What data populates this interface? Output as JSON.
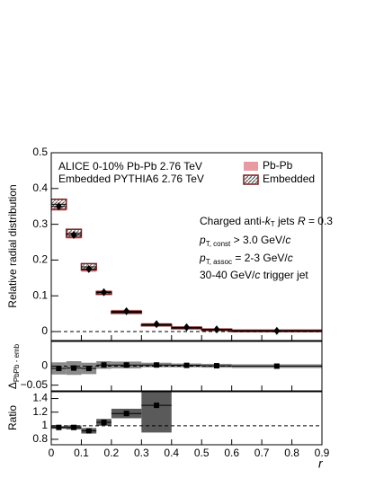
{
  "chart_data": [
    {
      "type": "histogram",
      "ylabel": "Relative radial distribution",
      "bins": [
        0,
        0.05,
        0.1,
        0.15,
        0.2,
        0.3,
        0.4,
        0.5,
        0.6,
        0.9
      ],
      "x": [
        0.025,
        0.075,
        0.125,
        0.175,
        0.25,
        0.35,
        0.45,
        0.55,
        0.75
      ],
      "series": [
        {
          "name": "Pb-Pb",
          "color": "#e89aa2",
          "values": [
            0.35,
            0.27,
            0.175,
            0.11,
            0.057,
            0.021,
            0.012,
            0.006,
            0.002
          ],
          "errors": [
            0.012,
            0.01,
            0.008,
            0.005,
            0.004,
            0.003,
            0.003,
            0.003,
            0.004
          ]
        },
        {
          "name": "Embedded",
          "color": "#7a1e1e",
          "values": [
            0.356,
            0.275,
            0.181,
            0.108,
            0.054,
            0.018,
            0.01,
            0.005,
            0.002
          ],
          "errors": [
            0.014,
            0.011,
            0.009,
            0.004,
            0.003,
            0.002,
            0.002,
            0.002,
            0.002
          ]
        }
      ],
      "annotations": [
        "ALICE 0-10% Pb-Pb 2.76 TeV",
        "Embedded PYTHIA6 2.76 TeV"
      ],
      "jet_text": [
        "Charged anti-",
        "k",
        "T",
        " jets ",
        "R",
        " = 0.3"
      ],
      "const_text": [
        "p",
        "T, const",
        " > 3.0 GeV/",
        "c"
      ],
      "assoc_text": [
        "p",
        "T, assoc",
        " = 2-3 GeV/",
        "c"
      ],
      "trigger_text": [
        "30-40 GeV/",
        "c",
        " trigger jet"
      ],
      "reference": 0,
      "xlim": [
        0,
        0.9
      ],
      "xticks": [
        0,
        0.1,
        0.2,
        0.3,
        0.4,
        0.5,
        0.6,
        0.7,
        0.8,
        0.9
      ],
      "ylim": [
        -0.025,
        0.5
      ],
      "yticks": [
        0,
        0.1,
        0.2,
        0.3,
        0.4,
        0.5
      ]
    },
    {
      "type": "histogram",
      "ylabel": [
        "Δ",
        "PbPb - emb"
      ],
      "bins": [
        0,
        0.05,
        0.1,
        0.15,
        0.2,
        0.3,
        0.4,
        0.5,
        0.6,
        0.9
      ],
      "x": [
        0.025,
        0.075,
        0.125,
        0.175,
        0.25,
        0.35,
        0.45,
        0.55,
        0.75
      ],
      "series": [
        {
          "color": "#8a8a8a",
          "values": [
            -0.006,
            -0.005,
            -0.006,
            0.003,
            0.003,
            0.003,
            0.002,
            0.001,
            0.0
          ],
          "errors": [
            0.016,
            0.018,
            0.015,
            0.01,
            0.009,
            0.006,
            0.005,
            0.005,
            0.005
          ]
        }
      ],
      "reference": 0,
      "xlim": [
        0,
        0.9
      ],
      "xticks": [
        0,
        0.1,
        0.2,
        0.3,
        0.4,
        0.5,
        0.6,
        0.7,
        0.8,
        0.9
      ],
      "ylim": [
        -0.065,
        0.065
      ],
      "yticks": [
        {
          "value": -0.05,
          "label": "−0.05"
        },
        0
      ]
    },
    {
      "type": "histogram",
      "ylabel": "Ratio",
      "xlabel": "r",
      "bins": [
        0,
        0.05,
        0.1,
        0.15,
        0.2,
        0.3,
        0.4,
        0.5,
        0.6,
        0.9
      ],
      "x": [
        0.025,
        0.075,
        0.125,
        0.175,
        0.25,
        0.35,
        0.45,
        0.55,
        0.75
      ],
      "series": [
        {
          "color": "#5a5a5a",
          "values": [
            0.975,
            0.975,
            0.925,
            1.05,
            1.18,
            1.3,
            null,
            null,
            null
          ],
          "errors": [
            0.02,
            0.03,
            0.04,
            0.05,
            0.07,
            0.4,
            null,
            null,
            null
          ]
        }
      ],
      "reference": 1,
      "xlim": [
        0,
        0.9
      ],
      "xticks": [
        0,
        0.1,
        0.2,
        0.3,
        0.4,
        0.5,
        0.6,
        0.7,
        0.8,
        0.9
      ],
      "ylim": [
        0.72,
        1.5
      ],
      "yticks": [
        0.8,
        1,
        1.2,
        1.4
      ]
    }
  ]
}
